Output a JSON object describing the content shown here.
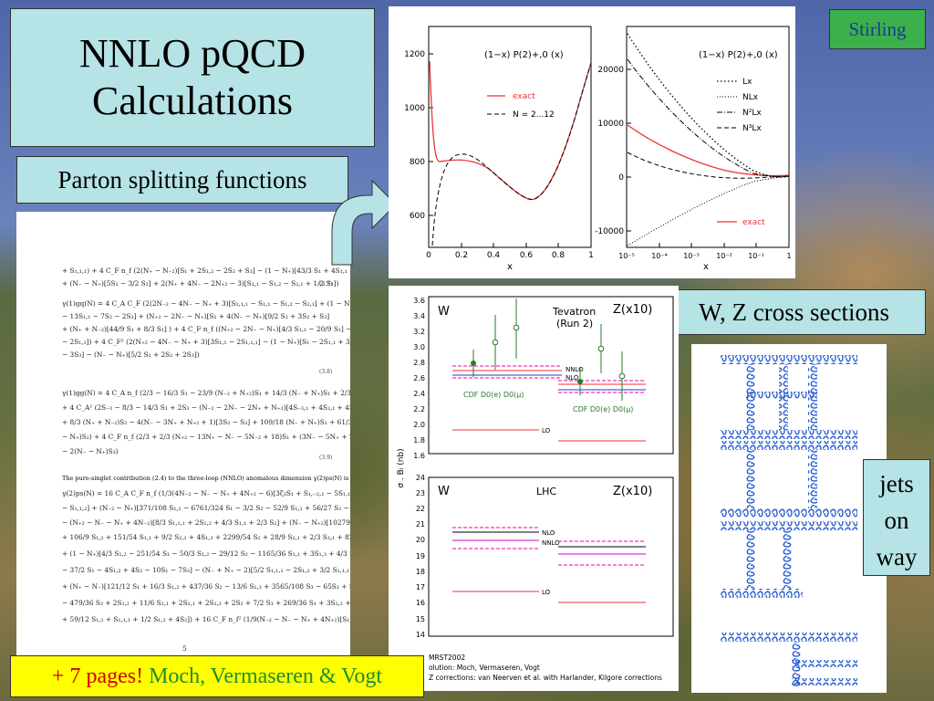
{
  "title_line1": "NNLO pQCD",
  "title_line2": "Calculations",
  "subtitle": "Parton splitting functions",
  "corner_label": "Stirling",
  "wz_label": "W, Z cross sections",
  "jets_label": [
    "jets",
    "on",
    "way"
  ],
  "footer": {
    "pages": "+ 7 pages!",
    "authors": "Moch, Vermaseren & Vogt"
  },
  "paper": {
    "eq_numbers": [
      "(3.7)",
      "(3.8)",
      "(3.9)"
    ],
    "paragraph": "The pure-singlet contribution (2.4) to the three-loop (NNLO) anomalous dimension γ(2)ps(N) is",
    "page_number": "5"
  },
  "splitting_plots": {
    "left": {
      "title": "(1−x) P(2)+,0 (x)",
      "xlabel": "x",
      "x_ticks": [
        "0",
        "0.2",
        "0.4",
        "0.6",
        "0.8",
        "1"
      ],
      "y_ticks": [
        "600",
        "800",
        "1000",
        "1200"
      ],
      "legend": [
        "exact",
        "N = 2...12"
      ]
    },
    "right": {
      "title": "(1−x) P(2)+,0 (x)",
      "xlabel": "x",
      "x_ticks": [
        "10⁻⁵",
        "10⁻⁴",
        "10⁻³",
        "10⁻²",
        "10⁻¹",
        "1"
      ],
      "y_ticks": [
        "-10000",
        "0",
        "10000",
        "20000"
      ],
      "legend": [
        "Lx",
        "NLx",
        "N²Lx",
        "N³Lx",
        "exact"
      ]
    }
  },
  "xs_plots": {
    "ylabel": "σ . Bₗ (nb)",
    "tevatron": {
      "labels": [
        "W",
        "Z(x10)",
        "Tevatron",
        "(Run 2)"
      ],
      "curve_labels": [
        "NNLO",
        "NLO",
        "LO"
      ],
      "data_labels": [
        "CDF D0(e) D0(μ)",
        "CDF D0(e) D0(μ)"
      ],
      "y_ticks": [
        "1.6",
        "1.8",
        "2.0",
        "2.2",
        "2.4",
        "2.6",
        "2.8",
        "3.0",
        "3.2",
        "3.4",
        "3.6"
      ]
    },
    "lhc": {
      "labels": [
        "W",
        "LHC",
        "Z(x10)"
      ],
      "curve_labels": [
        "NLO",
        "NNLO",
        "LO"
      ],
      "y_ticks": [
        "14",
        "15",
        "16",
        "17",
        "18",
        "19",
        "20",
        "21",
        "22",
        "23",
        "24"
      ]
    },
    "notes": [
      "MRST2002",
      "olution: Moch, Vermaseren, Vogt",
      "Z corrections: van Neerven et al. with Harlander, Kilgore corrections"
    ]
  }
}
